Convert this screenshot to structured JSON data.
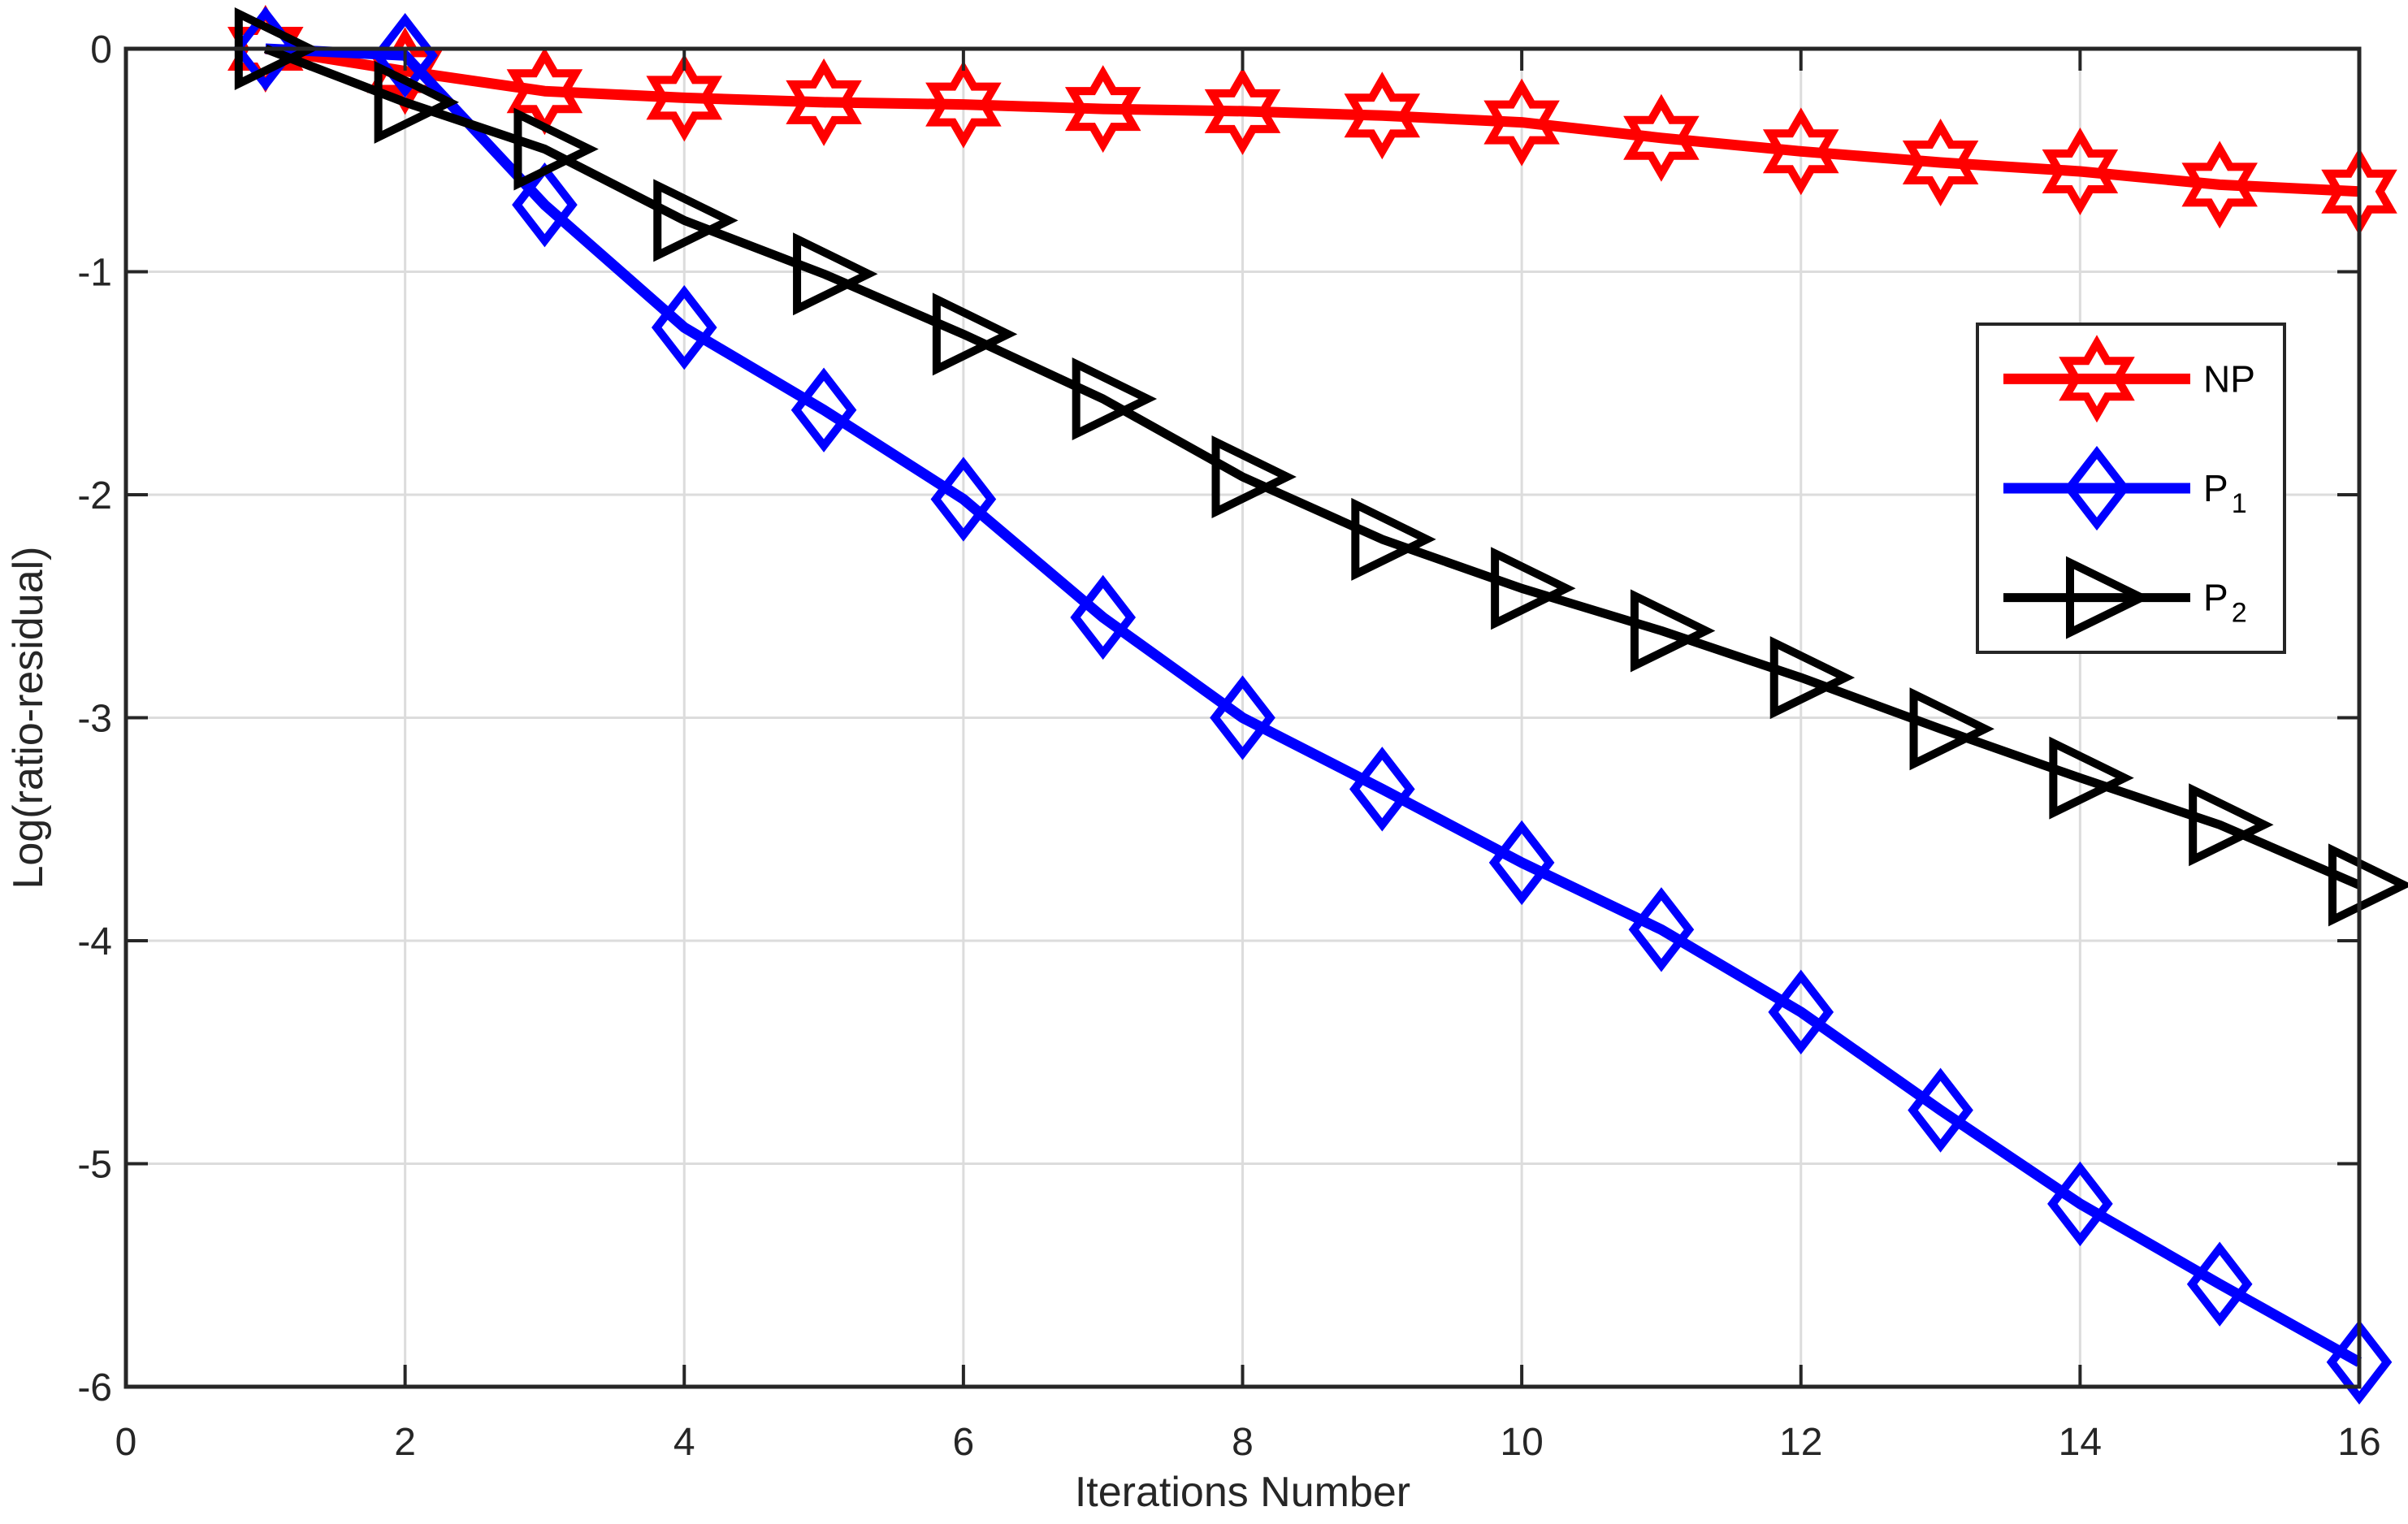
{
  "chart_data": {
    "type": "line",
    "title": "",
    "xlabel": "Iterations Number",
    "ylabel": "Log(ratio-residual)",
    "xlim": [
      0,
      16
    ],
    "ylim": [
      -6,
      0
    ],
    "xticks": [
      0,
      2,
      4,
      6,
      8,
      10,
      12,
      14,
      16
    ],
    "yticks": [
      0,
      -1,
      -2,
      -3,
      -4,
      -5,
      -6
    ],
    "grid": true,
    "x": [
      1,
      2,
      3,
      4,
      5,
      6,
      7,
      8,
      9,
      10,
      11,
      12,
      13,
      14,
      15,
      16
    ],
    "series": [
      {
        "name": "NP",
        "legend_label": "NP",
        "legend_subscript": "",
        "color": "#FF0000",
        "marker": "hexagram",
        "line_width": 13,
        "marker_stroke": 10,
        "values": [
          0.0,
          -0.1,
          -0.19,
          -0.22,
          -0.24,
          -0.25,
          -0.27,
          -0.28,
          -0.3,
          -0.33,
          -0.4,
          -0.46,
          -0.51,
          -0.55,
          -0.61,
          -0.64
        ]
      },
      {
        "name": "P1",
        "legend_label": "P",
        "legend_subscript": "1",
        "color": "#0000FF",
        "marker": "diamond",
        "line_width": 13,
        "marker_stroke": 10,
        "values": [
          0.0,
          -0.03,
          -0.7,
          -1.25,
          -1.62,
          -2.02,
          -2.55,
          -3.0,
          -3.32,
          -3.65,
          -3.95,
          -4.32,
          -4.76,
          -5.18,
          -5.54,
          -5.89
        ]
      },
      {
        "name": "P2",
        "legend_label": "P",
        "legend_subscript": "2",
        "color": "#000000",
        "marker": "triangle-right",
        "line_width": 11,
        "marker_stroke": 10,
        "values": [
          0.0,
          -0.24,
          -0.45,
          -0.77,
          -1.01,
          -1.28,
          -1.57,
          -1.92,
          -2.2,
          -2.42,
          -2.61,
          -2.82,
          -3.05,
          -3.27,
          -3.48,
          -3.75
        ]
      }
    ],
    "legend": {
      "position": "upper-right-inset",
      "entries": [
        "NP",
        "P_1",
        "P_2"
      ]
    },
    "colors": {
      "background": "#FFFFFF",
      "grid": "#DCDCDC",
      "axis": "#262626",
      "tick_label": "#262626"
    }
  }
}
